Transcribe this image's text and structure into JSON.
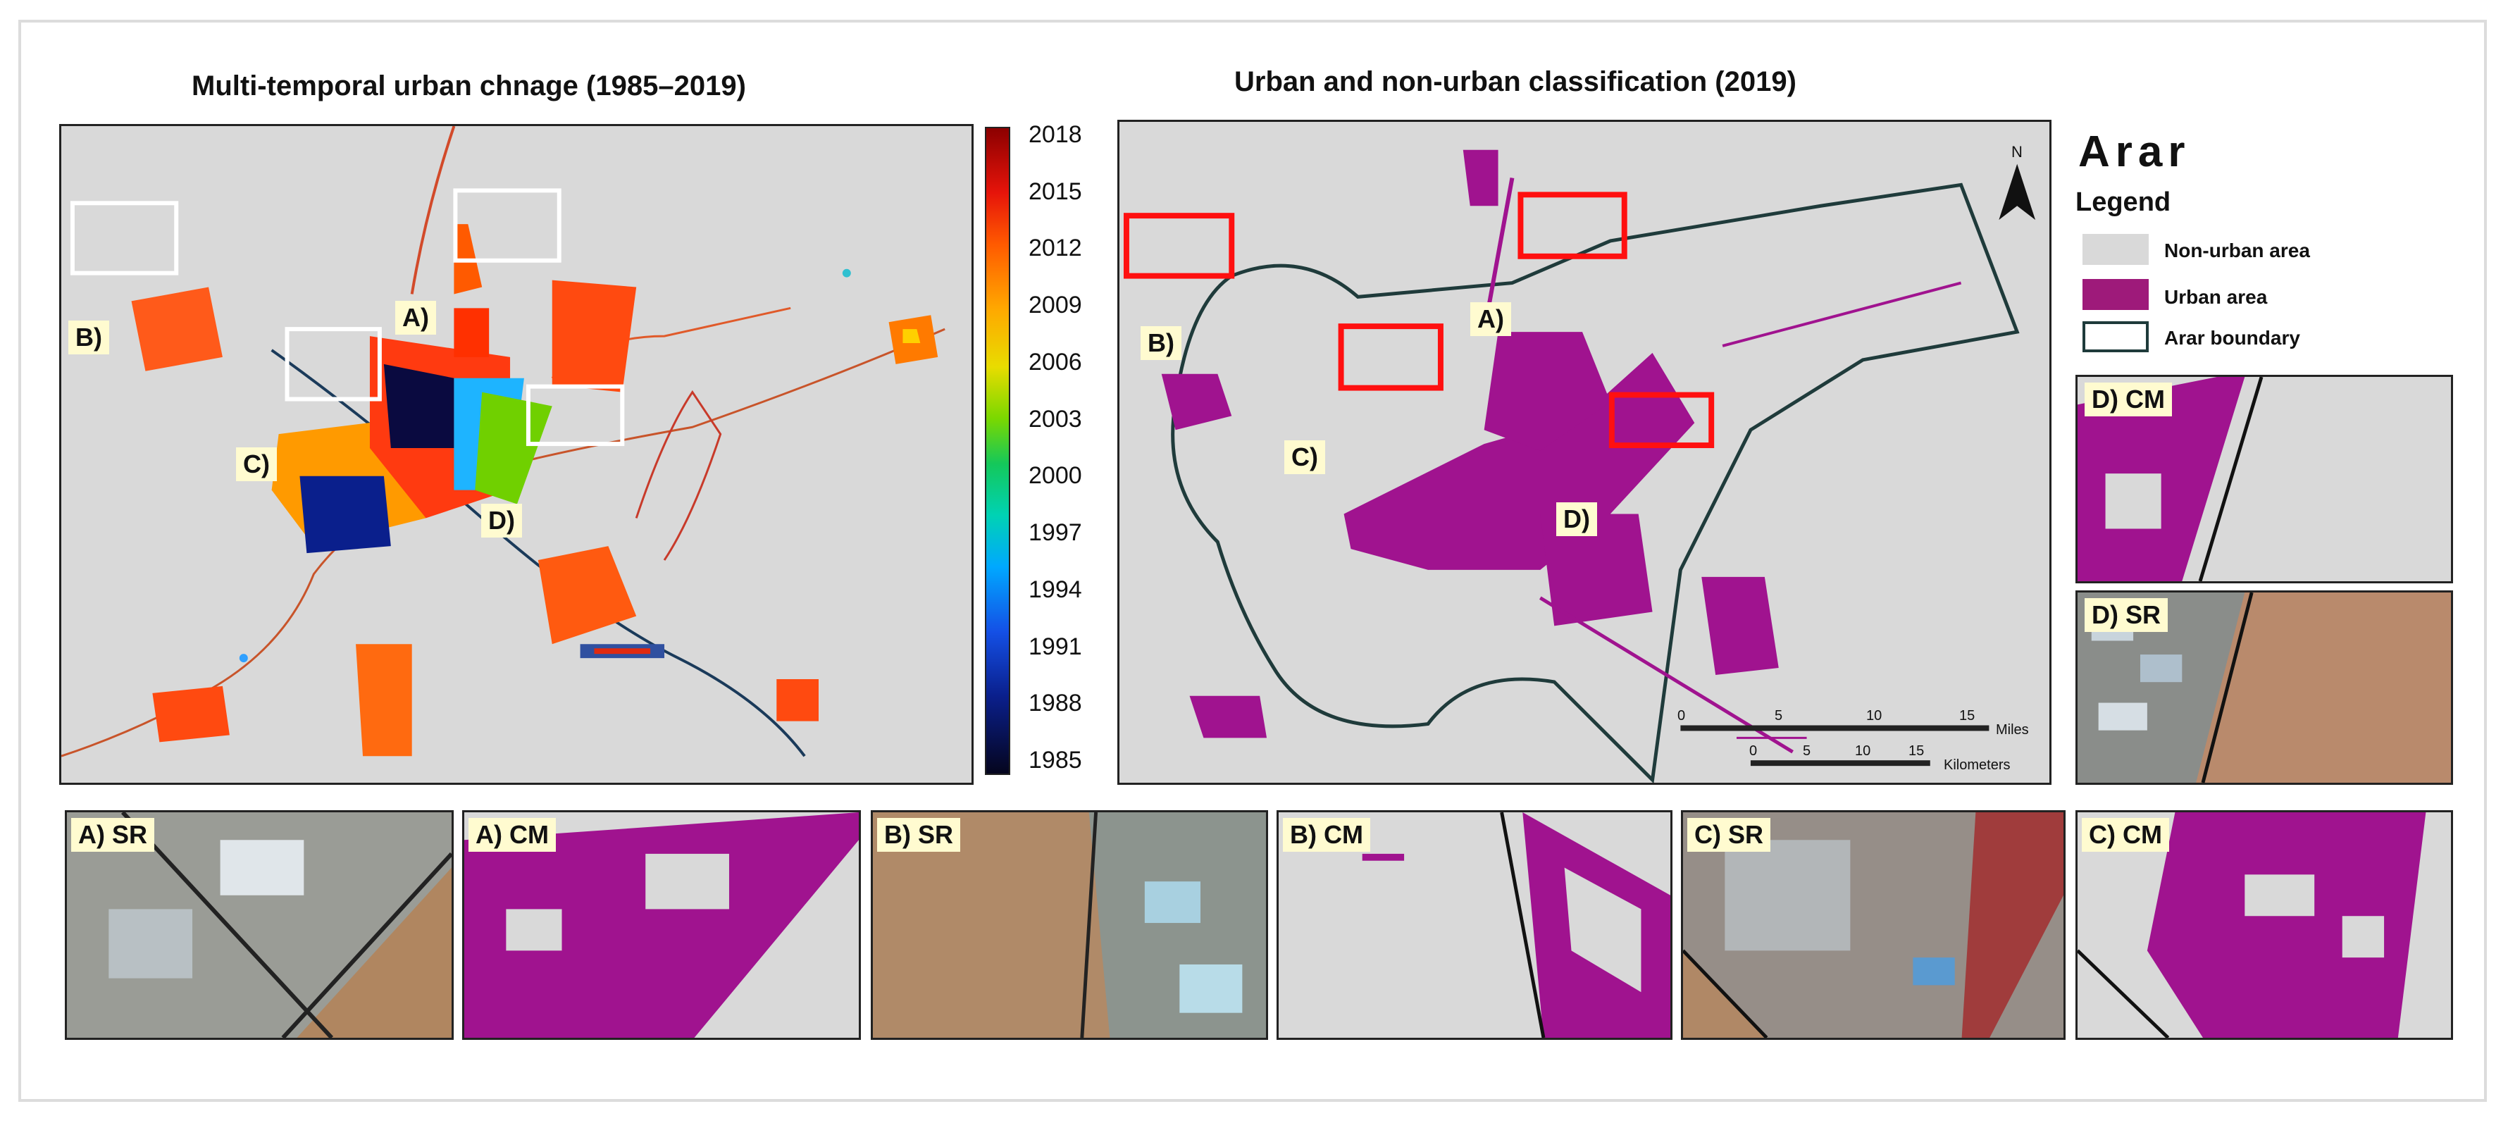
{
  "titles": {
    "left": "Multi-temporal urban chnage (1985–2019)",
    "middle": "Urban and non-urban classification (2019)",
    "city": "Arar"
  },
  "colorbar": {
    "ticks": [
      "2018",
      "2015",
      "2012",
      "2009",
      "2006",
      "2003",
      "2000",
      "1997",
      "1994",
      "1991",
      "1988",
      "1985"
    ]
  },
  "left_map_labels": [
    "A)",
    "B)",
    "C)",
    "D)"
  ],
  "middle_map_labels": [
    "A)",
    "B)",
    "C)",
    "D)"
  ],
  "north": "N",
  "scale": {
    "miles_ticks": [
      "0",
      "5",
      "10",
      "15"
    ],
    "miles_unit": "Miles",
    "km_ticks": [
      "0",
      "5",
      "10",
      "15"
    ],
    "km_unit": "Kilometers"
  },
  "legend": {
    "heading": "Legend",
    "items": [
      {
        "label": "Non-urban area",
        "color": "#d9d9d9"
      },
      {
        "label": "Urban area",
        "color": "#9e1a7a"
      },
      {
        "label": "Arar boundary",
        "color": "#1f3b3b"
      }
    ]
  },
  "insets": {
    "d_cm": "D) CM",
    "d_sr": "D) SR",
    "a_sr": "A) SR",
    "a_cm": "A) CM",
    "b_sr": "B) SR",
    "b_cm": "B) CM",
    "c_sr": "C) SR",
    "c_cm": "C) CM"
  },
  "colors": {
    "urban": "#a0138f",
    "highlight_red": "#ff1010",
    "highlight_white": "#ffffff",
    "background_gray": "#d9d9d9"
  }
}
